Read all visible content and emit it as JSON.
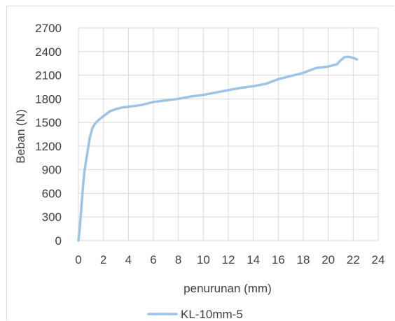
{
  "chart_data": {
    "type": "line",
    "title": "",
    "xlabel": "penurunan (mm)",
    "ylabel": "Beban (N)",
    "xlim": [
      0,
      24
    ],
    "ylim": [
      0,
      2700
    ],
    "xticks": [
      0,
      2,
      4,
      6,
      8,
      10,
      12,
      14,
      16,
      18,
      20,
      22,
      24
    ],
    "yticks": [
      0,
      300,
      600,
      900,
      1200,
      1500,
      1800,
      2100,
      2400,
      2700
    ],
    "grid": true,
    "legend_position": "bottom",
    "series": [
      {
        "name": "KL-10mm-5",
        "color": "#9dc3e6",
        "x": [
          0,
          0.1,
          0.2,
          0.3,
          0.4,
          0.5,
          0.7,
          0.9,
          1.1,
          1.3,
          1.6,
          2.0,
          2.5,
          3.0,
          3.5,
          4.0,
          5.0,
          6.0,
          7.0,
          8.0,
          9.0,
          10.0,
          11.0,
          12.0,
          13.0,
          14.0,
          15.0,
          16.0,
          17.0,
          18.0,
          19.0,
          20.0,
          20.7,
          21.0,
          21.3,
          21.6,
          22.0,
          22.3
        ],
        "y": [
          0,
          150,
          350,
          550,
          750,
          900,
          1100,
          1300,
          1420,
          1480,
          1530,
          1580,
          1640,
          1670,
          1690,
          1700,
          1720,
          1760,
          1780,
          1800,
          1830,
          1850,
          1880,
          1910,
          1940,
          1960,
          1990,
          2050,
          2090,
          2130,
          2190,
          2210,
          2240,
          2290,
          2330,
          2335,
          2320,
          2300
        ]
      }
    ]
  }
}
